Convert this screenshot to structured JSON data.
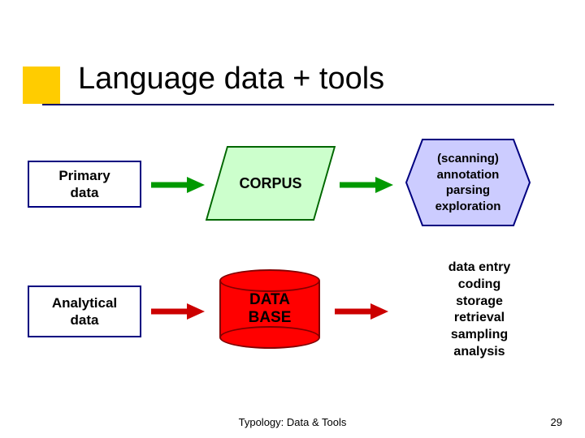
{
  "slide": {
    "title": "Language data + tools",
    "footer": "Typology: Data & Tools",
    "page_number": "29",
    "accent_color": "#ffcc00",
    "title_underline_color": "#000066",
    "background_color": "#ffffff"
  },
  "rows": {
    "primary": {
      "source_label": "Primary\ndata",
      "container_label": "CORPUS",
      "container_fill": "#ccffcc",
      "container_border": "#006600",
      "processes_label": "(scanning)\nannotation\nparsing\nexploration",
      "hex_fill": "#ccccff",
      "hex_border": "#000080"
    },
    "analytical": {
      "source_label": "Analytical\ndata",
      "container_label": "DATA\nBASE",
      "container_fill": "#ff0000",
      "container_border": "#800000",
      "processes_label": "data entry\ncoding\nstorage\nretrieval\nsampling\nanalysis"
    }
  },
  "arrows": {
    "row1_a": "#009900",
    "row1_b": "#009900",
    "row2_a": "#cc0000",
    "row2_b": "#cc0000",
    "stroke_width": 7
  },
  "box_border": "#000080",
  "font_family": "Verdana, Arial, sans-serif"
}
